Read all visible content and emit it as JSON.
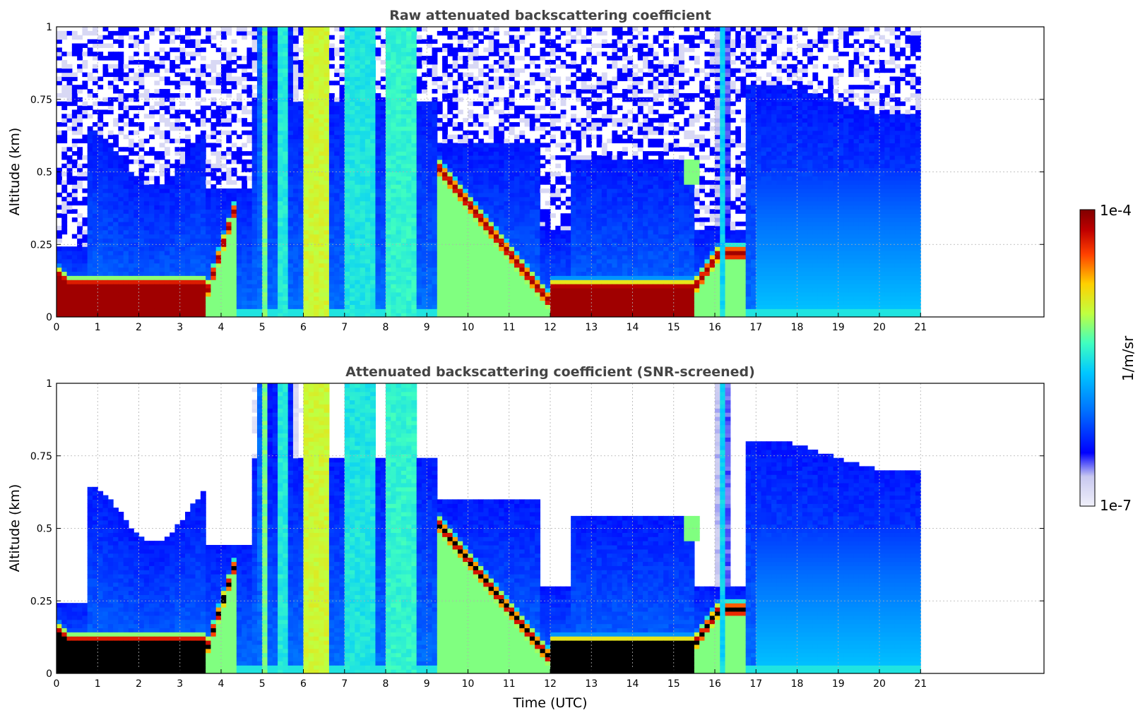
{
  "chart_data": [
    {
      "type": "heatmap",
      "title": "Raw attenuated backscattering coefficient",
      "xlabel": "",
      "ylabel": "Altitude (km)",
      "xlim": [
        0,
        24
      ],
      "ylim": [
        0,
        1
      ],
      "data_x_range": [
        0,
        21
      ],
      "xticks": [
        "0",
        "1",
        "2",
        "3",
        "4",
        "5",
        "6",
        "7",
        "8",
        "9",
        "10",
        "11",
        "12",
        "13",
        "14",
        "15",
        "16",
        "17",
        "18",
        "19",
        "20",
        "21"
      ],
      "yticks": [
        "0",
        "0.25",
        "0.5",
        "0.75",
        "1"
      ],
      "grid": true,
      "screened": false,
      "features": [
        {
          "label": "surface aerosol layer",
          "x": [
            0,
            3.7
          ],
          "top_km": 0.12
        },
        {
          "label": "rising boundary layer top",
          "x": [
            3.6,
            4.4
          ],
          "y_km": [
            0.05,
            0.4
          ]
        },
        {
          "label": "descending layer",
          "x": [
            9.2,
            12.0
          ],
          "y_km": [
            0.52,
            0.05
          ]
        },
        {
          "label": "nocturnal surface layer",
          "x": [
            12.0,
            15.5
          ],
          "top_km": 0.1
        },
        {
          "label": "cloud patch",
          "x": [
            15.2,
            15.6
          ],
          "y_km": 0.5
        },
        {
          "label": "elevated layer",
          "x": [
            16.3,
            16.8
          ],
          "y_km": 0.22
        }
      ]
    },
    {
      "type": "heatmap",
      "title": "Attenuated backscattering coefficient (SNR-screened)",
      "xlabel": "Time (UTC)",
      "ylabel": "Altitude (km)",
      "xlim": [
        0,
        24
      ],
      "ylim": [
        0,
        1
      ],
      "data_x_range": [
        0,
        21
      ],
      "xticks": [
        "0",
        "1",
        "2",
        "3",
        "4",
        "5",
        "6",
        "7",
        "8",
        "9",
        "10",
        "11",
        "12",
        "13",
        "14",
        "15",
        "16",
        "17",
        "18",
        "19",
        "20",
        "21"
      ],
      "yticks": [
        "0",
        "0.25",
        "0.5",
        "0.75",
        "1"
      ],
      "grid": true,
      "screened": true
    }
  ],
  "colorbar": {
    "label": "1/m/sr",
    "max_label": "1e-4",
    "min_label": "1e-7",
    "scale": "log",
    "range": [
      1e-07,
      0.0001
    ],
    "colormap": [
      "#f0f0fa",
      "#c8c8f0",
      "#0000ff",
      "#0070ff",
      "#00c8ff",
      "#40ffc0",
      "#c0ff40",
      "#ffd000",
      "#ff4000",
      "#c00000",
      "#800000"
    ]
  }
}
